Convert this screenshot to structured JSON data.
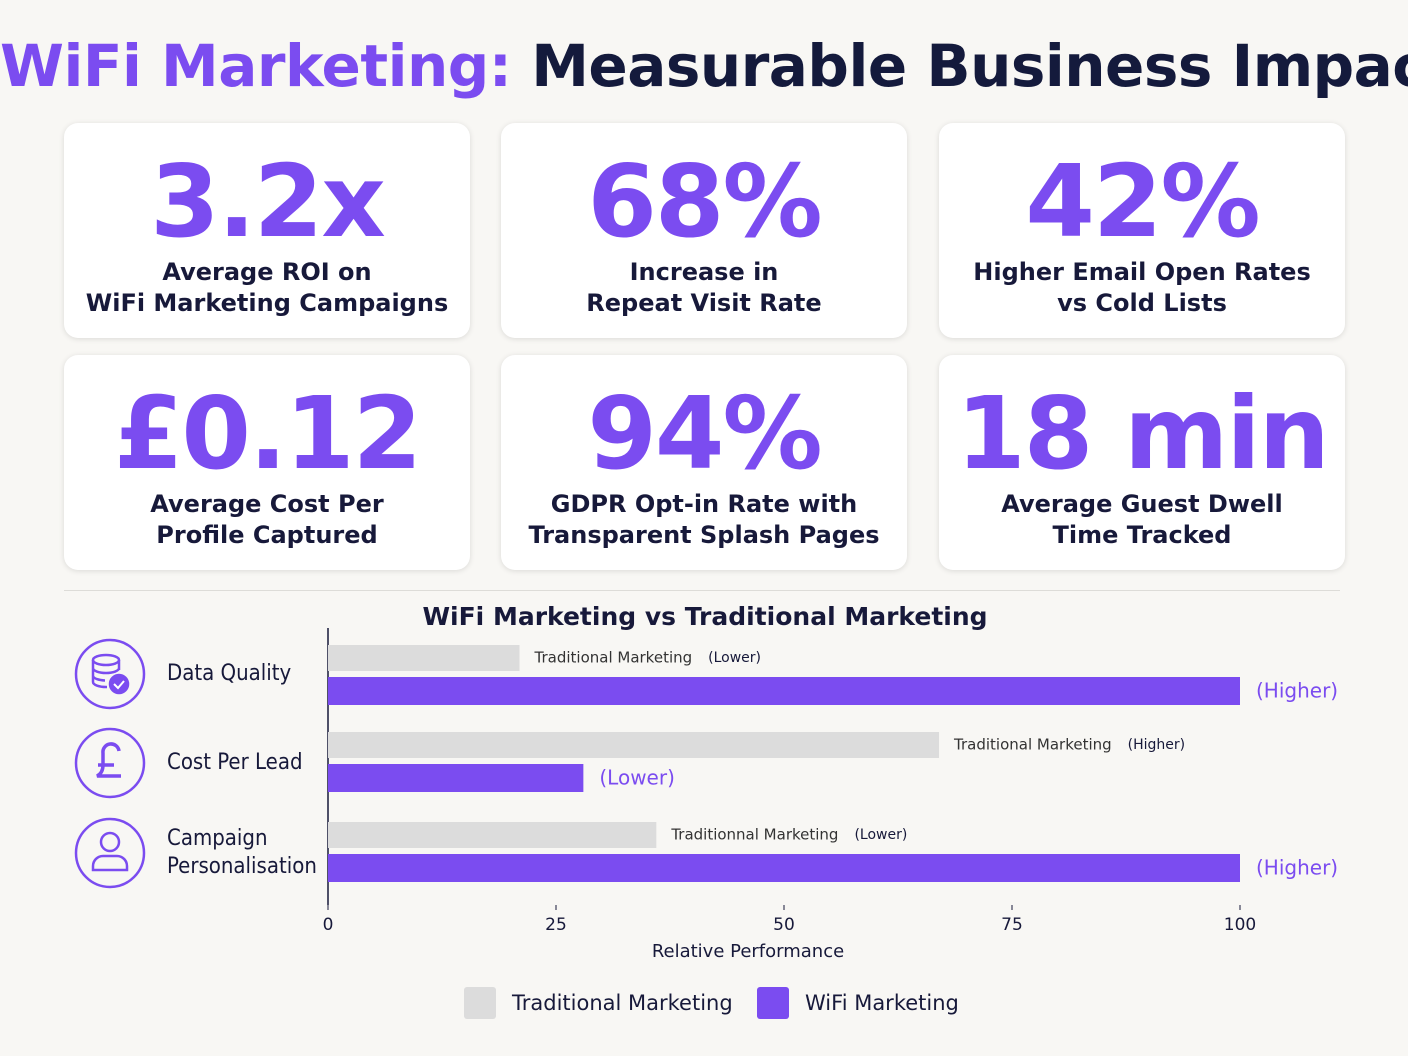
{
  "header": {
    "title_highlight": "WiFi Marketing:",
    "title_rest": "Measurable Business Impact"
  },
  "cards": [
    {
      "value": "3.2x",
      "label": [
        "Average ROI on",
        "WiFi Marketing Campaigns"
      ]
    },
    {
      "value": "68%",
      "label": [
        "Increase in",
        "Repeat Visit Rate"
      ]
    },
    {
      "value": "42%",
      "label": [
        "Higher Email Open Rates",
        "vs Cold Lists"
      ]
    },
    {
      "value": "£0.12",
      "label": [
        "Average Cost Per",
        "Profile Captured"
      ]
    },
    {
      "value": "94%",
      "label": [
        "GDPR Opt-in Rate with",
        "Transparent Splash Pages"
      ]
    },
    {
      "value": "18 min",
      "label": [
        "Average Guest Dwell",
        "Time Tracked"
      ]
    }
  ],
  "chart_data": {
    "type": "hbar",
    "title": "WiFi Marketing vs Traditional Marketing",
    "categories": [
      "Data Quality",
      "Cost Per Lead",
      "Campaign Personalisation"
    ],
    "series": [
      {
        "name": "Traditional Marketing",
        "color": "#dcdcdc",
        "values": [
          21,
          67,
          36
        ],
        "notes": [
          [
            "Traditional Marketing",
            "(Lower)"
          ],
          [
            "Traditional Marketing",
            "(Higher)"
          ],
          [
            "Traditionnal Marketing",
            "(Lower)"
          ]
        ]
      },
      {
        "name": "WiFi Marketing",
        "color": "#7b4cf0",
        "values": [
          100,
          28,
          100
        ],
        "notes": [
          "(Higher)",
          "(Lower)",
          "(Higher)"
        ]
      }
    ],
    "xlim": [
      0,
      100
    ],
    "xticks": [
      0,
      25,
      50,
      75,
      100
    ],
    "xlabel": "Relative Performance",
    "legend": "bottom"
  }
}
